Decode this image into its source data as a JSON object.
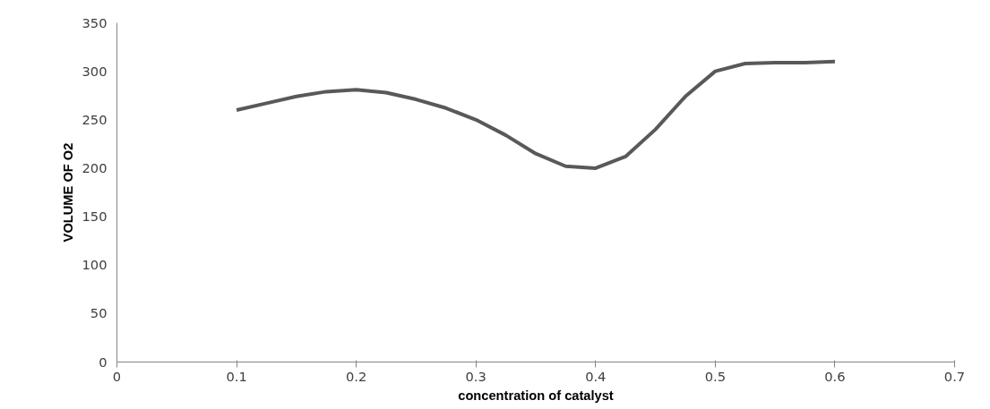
{
  "chart_data": {
    "type": "line",
    "xlabel": "concentration of catalyst",
    "ylabel": "VOLUME OF O2",
    "x": [
      0.1,
      0.125,
      0.15,
      0.175,
      0.2,
      0.225,
      0.25,
      0.275,
      0.3,
      0.325,
      0.35,
      0.375,
      0.4,
      0.425,
      0.45,
      0.475,
      0.5,
      0.525,
      0.55,
      0.575,
      0.6
    ],
    "series": [
      {
        "color": "#595959",
        "values": [
          260,
          267,
          274,
          279,
          281,
          278,
          271,
          262,
          250,
          234,
          215,
          202,
          200,
          212,
          240,
          274,
          300,
          308,
          309,
          309,
          310
        ]
      }
    ],
    "xlim": [
      0,
      0.7
    ],
    "xticks": [
      0,
      0.1,
      0.2,
      0.3,
      0.4,
      0.5,
      0.6,
      0.7
    ],
    "ylim": [
      0,
      350
    ],
    "yticks": [
      0,
      50,
      100,
      150,
      200,
      250,
      300,
      350
    ],
    "grid": false,
    "marker": "none",
    "line_style": "solid"
  }
}
